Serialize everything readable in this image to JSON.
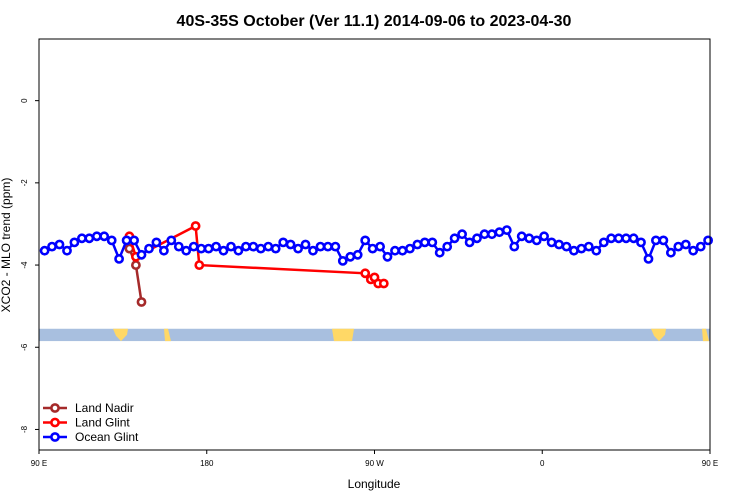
{
  "chart_data": {
    "type": "line",
    "title": "40S-35S October (Ver 11.1)   2014-09-06 to 2023-04-30",
    "xlabel": "Longitude",
    "ylabel": "XCO2 - MLO trend (ppm)",
    "xlim": [
      90,
      450
    ],
    "ylim": [
      -8.5,
      1.5
    ],
    "x_ticks": [
      {
        "value": 90,
        "label": "90 E"
      },
      {
        "value": 180,
        "label": "180"
      },
      {
        "value": 270,
        "label": "90 W"
      },
      {
        "value": 360,
        "label": "0"
      },
      {
        "value": 450,
        "label": "90 E"
      },
      {
        "value": 540,
        "label": "180"
      }
    ],
    "y_ticks": [
      {
        "value": 0,
        "label": "0"
      },
      {
        "value": -2,
        "label": "-2"
      },
      {
        "value": -4,
        "label": "-4"
      },
      {
        "value": -6,
        "label": "-6"
      },
      {
        "value": -8,
        "label": "-8"
      }
    ],
    "grid": false,
    "legend_position": "bottom-left",
    "series": [
      {
        "name": "Land Nadir",
        "color": "#a52a2a",
        "x": [
          138.5,
          142,
          145
        ],
        "y": [
          -3.6,
          -4.0,
          -4.9
        ]
      },
      {
        "name": "Land Glint",
        "color": "#ff0000",
        "x": [
          138.5,
          142,
          174,
          176,
          265,
          268,
          270,
          272,
          275
        ],
        "y": [
          -3.3,
          -3.8,
          -3.05,
          -4.0,
          -4.2,
          -4.35,
          -4.3,
          -4.45,
          -4.45
        ]
      },
      {
        "name": "Ocean Glint",
        "color": "#0000ff",
        "x": [
          93,
          97,
          101,
          105,
          109,
          113,
          117,
          121,
          125,
          129,
          133,
          137,
          141,
          145,
          149,
          153,
          157,
          161,
          165,
          169,
          173,
          177,
          181,
          185,
          189,
          193,
          197,
          201,
          205,
          209,
          213,
          217,
          221,
          225,
          229,
          233,
          237,
          241,
          245,
          249,
          253,
          257,
          261,
          265,
          269,
          273,
          277,
          281,
          285,
          289,
          293,
          297,
          301,
          305,
          309,
          313,
          317,
          321,
          325,
          329,
          333,
          337,
          341,
          345,
          349,
          353,
          357,
          361,
          365,
          369,
          373,
          377,
          381,
          385,
          389,
          393,
          397,
          401,
          405,
          409,
          413,
          417,
          421,
          425,
          429,
          433,
          437,
          441,
          445,
          449
        ],
        "y": [
          -3.65,
          -3.55,
          -3.5,
          -3.65,
          -3.45,
          -3.35,
          -3.35,
          -3.3,
          -3.3,
          -3.4,
          -3.85,
          -3.4,
          -3.4,
          -3.75,
          -3.6,
          -3.45,
          -3.65,
          -3.4,
          -3.55,
          -3.65,
          -3.55,
          -3.6,
          -3.6,
          -3.55,
          -3.65,
          -3.55,
          -3.65,
          -3.55,
          -3.55,
          -3.6,
          -3.55,
          -3.6,
          -3.45,
          -3.5,
          -3.6,
          -3.5,
          -3.65,
          -3.55,
          -3.55,
          -3.55,
          -3.9,
          -3.8,
          -3.75,
          -3.4,
          -3.6,
          -3.55,
          -3.8,
          -3.65,
          -3.65,
          -3.6,
          -3.5,
          -3.45,
          -3.45,
          -3.7,
          -3.55,
          -3.35,
          -3.25,
          -3.45,
          -3.35,
          -3.25,
          -3.25,
          -3.2,
          -3.15,
          -3.55,
          -3.3,
          -3.35,
          -3.4,
          -3.3,
          -3.45,
          -3.5,
          -3.55,
          -3.65,
          -3.6,
          -3.55,
          -3.65,
          -3.45,
          -3.35,
          -3.35,
          -3.35,
          -3.35,
          -3.45,
          -3.85,
          -3.4,
          -3.4,
          -3.7,
          -3.55,
          -3.5,
          -3.65,
          -3.55,
          -3.4
        ]
      }
    ],
    "land_band": {
      "y_top": -5.55,
      "y_bottom": -5.85,
      "ocean_color": "#a8bfdf",
      "land_color": "#ffd866"
    }
  }
}
